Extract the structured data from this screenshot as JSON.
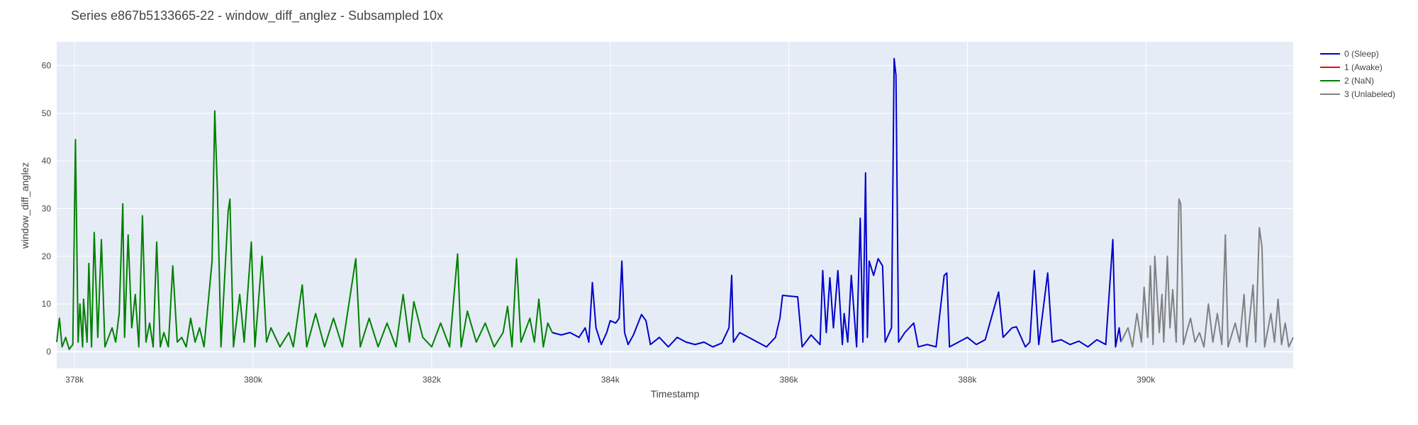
{
  "chart_data": {
    "type": "line",
    "title": "Series e867b5133665-22 - window_diff_anglez - Subsampled 10x",
    "xlabel": "Timestamp",
    "ylabel": "window_diff_anglez",
    "xlim": [
      377800,
      391650
    ],
    "ylim": [
      -3.5,
      65
    ],
    "x_ticks": [
      378000,
      380000,
      382000,
      384000,
      386000,
      388000,
      390000
    ],
    "x_tick_labels": [
      "378k",
      "380k",
      "382k",
      "384k",
      "386k",
      "388k",
      "390k"
    ],
    "y_ticks": [
      0,
      10,
      20,
      30,
      40,
      50,
      60
    ],
    "y_tick_labels": [
      "0",
      "10",
      "20",
      "30",
      "40",
      "50",
      "60"
    ],
    "grid": true,
    "legend_position": "right",
    "background": "#e5ecf6",
    "series": [
      {
        "name": "0 (Sleep)",
        "color": "#0000cc",
        "points": [
          [
            383350,
            4
          ],
          [
            383450,
            3.5
          ],
          [
            383550,
            4
          ],
          [
            383650,
            3
          ],
          [
            383720,
            5
          ],
          [
            383760,
            2
          ],
          [
            383800,
            14.5
          ],
          [
            383840,
            5
          ],
          [
            383900,
            1.5
          ],
          [
            383960,
            4
          ],
          [
            384000,
            6.5
          ],
          [
            384060,
            6
          ],
          [
            384100,
            7
          ],
          [
            384130,
            19
          ],
          [
            384160,
            4
          ],
          [
            384200,
            1.5
          ],
          [
            384260,
            3.5
          ],
          [
            384350,
            7.8
          ],
          [
            384400,
            6.5
          ],
          [
            384450,
            1.5
          ],
          [
            384550,
            3
          ],
          [
            384650,
            1
          ],
          [
            384750,
            3
          ],
          [
            384850,
            2
          ],
          [
            384950,
            1.5
          ],
          [
            385050,
            2
          ],
          [
            385150,
            1
          ],
          [
            385250,
            1.8
          ],
          [
            385330,
            5
          ],
          [
            385360,
            16
          ],
          [
            385380,
            2
          ],
          [
            385450,
            4
          ],
          [
            385550,
            3
          ],
          [
            385650,
            2
          ],
          [
            385750,
            1
          ],
          [
            385850,
            3
          ],
          [
            385900,
            7
          ],
          [
            385930,
            11.8
          ],
          [
            386100,
            11.5
          ],
          [
            386150,
            1
          ],
          [
            386250,
            3.5
          ],
          [
            386350,
            1.5
          ],
          [
            386380,
            17
          ],
          [
            386420,
            4
          ],
          [
            386460,
            15.5
          ],
          [
            386500,
            5
          ],
          [
            386550,
            17
          ],
          [
            386600,
            1.5
          ],
          [
            386620,
            8
          ],
          [
            386660,
            2
          ],
          [
            386700,
            16
          ],
          [
            386760,
            1
          ],
          [
            386800,
            28
          ],
          [
            386830,
            2
          ],
          [
            386860,
            37.5
          ],
          [
            386880,
            3
          ],
          [
            386900,
            19
          ],
          [
            386950,
            16
          ],
          [
            387000,
            19.5
          ],
          [
            387050,
            18
          ],
          [
            387080,
            2
          ],
          [
            387150,
            5
          ],
          [
            387180,
            61.5
          ],
          [
            387200,
            58
          ],
          [
            387230,
            2
          ],
          [
            387300,
            4
          ],
          [
            387400,
            6
          ],
          [
            387450,
            1
          ],
          [
            387550,
            1.5
          ],
          [
            387650,
            1
          ],
          [
            387740,
            16
          ],
          [
            387770,
            16.5
          ],
          [
            387800,
            1
          ],
          [
            387900,
            2
          ],
          [
            388000,
            3
          ],
          [
            388100,
            1.5
          ],
          [
            388200,
            2.5
          ],
          [
            388350,
            12.5
          ],
          [
            388400,
            3
          ],
          [
            388500,
            5
          ],
          [
            388550,
            5.2
          ],
          [
            388650,
            1
          ],
          [
            388700,
            2
          ],
          [
            388750,
            17
          ],
          [
            388800,
            1.5
          ],
          [
            388900,
            16.5
          ],
          [
            388950,
            2
          ],
          [
            389050,
            2.5
          ],
          [
            389150,
            1.5
          ],
          [
            389250,
            2.2
          ],
          [
            389350,
            1
          ],
          [
            389450,
            2.5
          ],
          [
            389550,
            1.5
          ],
          [
            389630,
            23.5
          ],
          [
            389660,
            1
          ],
          [
            389700,
            5
          ],
          [
            389720,
            2
          ]
        ]
      },
      {
        "name": "1 (Awake)",
        "color": "#ff0000",
        "points": []
      },
      {
        "name": "2 (NaN)",
        "color": "#008000",
        "points": [
          [
            377800,
            2
          ],
          [
            377830,
            7
          ],
          [
            377860,
            1
          ],
          [
            377900,
            3
          ],
          [
            377940,
            0.5
          ],
          [
            377980,
            1.5
          ],
          [
            378010,
            44.5
          ],
          [
            378040,
            2
          ],
          [
            378060,
            10
          ],
          [
            378090,
            1
          ],
          [
            378100,
            11
          ],
          [
            378140,
            2
          ],
          [
            378160,
            18.5
          ],
          [
            378190,
            1
          ],
          [
            378220,
            25
          ],
          [
            378260,
            3
          ],
          [
            378300,
            23.5
          ],
          [
            378340,
            1
          ],
          [
            378380,
            3
          ],
          [
            378420,
            5
          ],
          [
            378460,
            2
          ],
          [
            378500,
            8
          ],
          [
            378540,
            31
          ],
          [
            378560,
            3
          ],
          [
            378600,
            24.5
          ],
          [
            378640,
            5
          ],
          [
            378680,
            12
          ],
          [
            378720,
            1
          ],
          [
            378760,
            28.5
          ],
          [
            378800,
            2
          ],
          [
            378840,
            6
          ],
          [
            378880,
            1
          ],
          [
            378920,
            23
          ],
          [
            378960,
            1
          ],
          [
            379000,
            4
          ],
          [
            379050,
            1
          ],
          [
            379100,
            18
          ],
          [
            379150,
            2
          ],
          [
            379200,
            3
          ],
          [
            379250,
            1
          ],
          [
            379300,
            7
          ],
          [
            379350,
            2
          ],
          [
            379400,
            5
          ],
          [
            379450,
            1
          ],
          [
            379540,
            19
          ],
          [
            379570,
            50.5
          ],
          [
            379600,
            33.5
          ],
          [
            379640,
            1
          ],
          [
            379720,
            29.5
          ],
          [
            379740,
            32
          ],
          [
            379780,
            1
          ],
          [
            379850,
            12
          ],
          [
            379900,
            2
          ],
          [
            379980,
            23
          ],
          [
            380020,
            1
          ],
          [
            380100,
            20
          ],
          [
            380150,
            2
          ],
          [
            380200,
            5
          ],
          [
            380300,
            1
          ],
          [
            380400,
            4
          ],
          [
            380450,
            1
          ],
          [
            380550,
            14
          ],
          [
            380600,
            1
          ],
          [
            380700,
            8
          ],
          [
            380800,
            1
          ],
          [
            380900,
            7
          ],
          [
            381000,
            1
          ],
          [
            381150,
            19.5
          ],
          [
            381200,
            1
          ],
          [
            381300,
            7
          ],
          [
            381400,
            1
          ],
          [
            381500,
            6
          ],
          [
            381600,
            1
          ],
          [
            381680,
            12
          ],
          [
            381750,
            2
          ],
          [
            381800,
            10.5
          ],
          [
            381900,
            3
          ],
          [
            382000,
            1
          ],
          [
            382100,
            6
          ],
          [
            382200,
            1
          ],
          [
            382290,
            20.5
          ],
          [
            382330,
            1
          ],
          [
            382400,
            8.5
          ],
          [
            382500,
            2
          ],
          [
            382600,
            6
          ],
          [
            382700,
            1
          ],
          [
            382800,
            4
          ],
          [
            382850,
            9.5
          ],
          [
            382900,
            1
          ],
          [
            382950,
            19.5
          ],
          [
            383000,
            2
          ],
          [
            383100,
            7
          ],
          [
            383150,
            2
          ],
          [
            383200,
            11
          ],
          [
            383250,
            1
          ],
          [
            383300,
            6
          ],
          [
            383350,
            4
          ]
        ]
      },
      {
        "name": "3 (Unlabeled)",
        "color": "#808080",
        "points": [
          [
            389720,
            2
          ],
          [
            389800,
            5
          ],
          [
            389850,
            1
          ],
          [
            389900,
            8
          ],
          [
            389950,
            2
          ],
          [
            389980,
            13.5
          ],
          [
            390020,
            3
          ],
          [
            390050,
            18
          ],
          [
            390080,
            1.5
          ],
          [
            390100,
            20
          ],
          [
            390150,
            4
          ],
          [
            390180,
            12
          ],
          [
            390200,
            2
          ],
          [
            390240,
            20
          ],
          [
            390270,
            5
          ],
          [
            390300,
            13
          ],
          [
            390340,
            2
          ],
          [
            390370,
            32
          ],
          [
            390390,
            31
          ],
          [
            390420,
            1.5
          ],
          [
            390470,
            5
          ],
          [
            390500,
            7
          ],
          [
            390550,
            2
          ],
          [
            390600,
            4
          ],
          [
            390650,
            1
          ],
          [
            390700,
            10
          ],
          [
            390750,
            2
          ],
          [
            390800,
            8
          ],
          [
            390850,
            1.5
          ],
          [
            390890,
            24.5
          ],
          [
            390920,
            1
          ],
          [
            391000,
            6
          ],
          [
            391050,
            2
          ],
          [
            391100,
            12
          ],
          [
            391130,
            1
          ],
          [
            391200,
            14
          ],
          [
            391230,
            2
          ],
          [
            391270,
            26
          ],
          [
            391300,
            22
          ],
          [
            391330,
            1
          ],
          [
            391400,
            8
          ],
          [
            391440,
            2
          ],
          [
            391480,
            11
          ],
          [
            391520,
            1.5
          ],
          [
            391560,
            6
          ],
          [
            391600,
            1
          ],
          [
            391650,
            3
          ]
        ]
      }
    ]
  }
}
